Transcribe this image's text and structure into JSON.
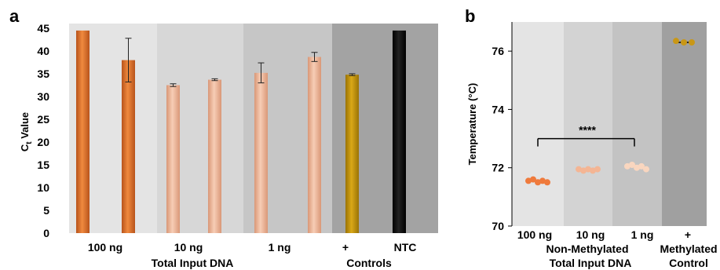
{
  "chart_data": [
    {
      "panel": "a",
      "type": "bar",
      "ylabel": "Ct Value",
      "ylabel_main": "C",
      "ylabel_sub": "t",
      "ylabel_rest": " Value",
      "ylim": [
        0,
        45
      ],
      "yticks": [
        "0",
        "5",
        "10",
        "15",
        "20",
        "25",
        "30",
        "35",
        "40",
        "45"
      ],
      "groups": [
        {
          "label": "100 ng",
          "bars": [
            44.5,
            38.0
          ],
          "errors": [
            0,
            4.8
          ],
          "color": "#e8732a"
        },
        {
          "label": "10 ng",
          "bars": [
            32.5,
            33.7
          ],
          "errors": [
            0.3,
            0.2
          ],
          "color": "#f2b99a"
        },
        {
          "label": "1 ng",
          "bars": [
            35.2,
            38.7
          ],
          "errors": [
            2.2,
            1.0
          ],
          "color": "#f2b99a"
        },
        {
          "label": "+",
          "bars": [
            34.8
          ],
          "errors": [
            0.2
          ],
          "color": "#c9980a"
        },
        {
          "label": "NTC",
          "bars": [
            44.5
          ],
          "errors": [
            0
          ],
          "color": "#000000"
        }
      ],
      "group_label_1": "Total Input DNA",
      "group_label_2": "Controls",
      "shading": [
        "#e4e4e4",
        "#d7d7d7",
        "#c6c6c6",
        "#a3a3a3"
      ]
    },
    {
      "panel": "b",
      "type": "scatter",
      "ylabel": "Temperature (°C)",
      "ylim": [
        70,
        77
      ],
      "yticks": [
        "70",
        "72",
        "74",
        "76"
      ],
      "categories": [
        "100 ng",
        "10 ng",
        "1 ng",
        "+"
      ],
      "category_sub": [
        "",
        "",
        "",
        "Methylated Control"
      ],
      "group_label_1": "Non-Methylated",
      "group_label_2": "Total Input DNA",
      "control_label_1": "Methylated",
      "control_label_2": "Control",
      "points": [
        [
          71.55,
          71.6,
          71.5,
          71.55,
          71.5
        ],
        [
          71.95,
          71.9,
          71.95,
          71.9,
          71.95
        ],
        [
          72.05,
          72.1,
          72.0,
          72.05,
          71.95
        ],
        [
          76.35,
          76.3,
          76.3
        ]
      ],
      "means": [
        71.55,
        71.92,
        72.03,
        76.3
      ],
      "colors": [
        "#ef7a3c",
        "#f4b594",
        "#f9d6bf",
        "#c99716"
      ],
      "significance": "****",
      "shading": [
        "#e4e4e4",
        "#d3d3d3",
        "#c3c3c3",
        "#a0a0a0"
      ]
    }
  ],
  "labels": {
    "panel_a": "a",
    "panel_b": "b"
  }
}
